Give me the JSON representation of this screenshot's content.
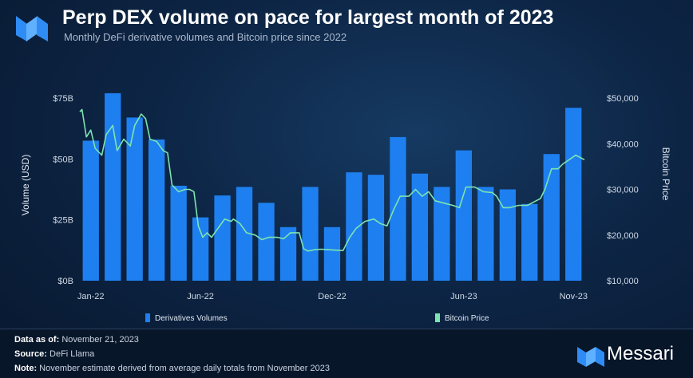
{
  "header": {
    "title": "Perp DEX volume on pace for largest month of 2023",
    "subtitle": "Monthly DeFi derivative volumes and Bitcoin price since 2022"
  },
  "colors": {
    "bars": "#1e80f0",
    "line": "#7ce4b0",
    "axis_text": "#cfd9e6",
    "background": "#0d2545"
  },
  "chart_data": {
    "type": "bar",
    "categories": [
      "Jan-22",
      "Feb-22",
      "Mar-22",
      "Apr-22",
      "May-22",
      "Jun-22",
      "Jul-22",
      "Aug-22",
      "Sep-22",
      "Oct-22",
      "Nov-22",
      "Dec-22",
      "Jan-23",
      "Feb-23",
      "Mar-23",
      "Apr-23",
      "May-23",
      "Jun-23",
      "Jul-23",
      "Aug-23",
      "Sep-23",
      "Oct-23",
      "Nov-23"
    ],
    "x_tick_labels": [
      "Jan-22",
      "Jun-22",
      "Dec-22",
      "Jun-23",
      "Nov-23"
    ],
    "series": [
      {
        "name": "Derivatives Volumes",
        "axis": "left",
        "values": [
          57.5,
          77,
          67,
          58,
          39,
          26,
          35,
          38.5,
          32,
          22,
          38.5,
          22,
          44.5,
          43.5,
          59,
          44,
          38.5,
          53.5,
          38.5,
          37.5,
          31.5,
          52,
          71
        ]
      },
      {
        "name": "Bitcoin Price",
        "axis": "right",
        "type": "line",
        "points": [
          [
            0,
            47000
          ],
          [
            0.1,
            47500
          ],
          [
            0.3,
            41500
          ],
          [
            0.5,
            43000
          ],
          [
            0.7,
            39000
          ],
          [
            1.0,
            37500
          ],
          [
            1.2,
            42000
          ],
          [
            1.5,
            44000
          ],
          [
            1.7,
            38500
          ],
          [
            2.0,
            41000
          ],
          [
            2.3,
            39500
          ],
          [
            2.5,
            44000
          ],
          [
            2.8,
            46500
          ],
          [
            3.0,
            45500
          ],
          [
            3.2,
            41000
          ],
          [
            3.5,
            40500
          ],
          [
            3.8,
            38500
          ],
          [
            4.0,
            38000
          ],
          [
            4.2,
            31000
          ],
          [
            4.5,
            29500
          ],
          [
            4.8,
            30000
          ],
          [
            5.0,
            30000
          ],
          [
            5.2,
            29500
          ],
          [
            5.4,
            22000
          ],
          [
            5.6,
            19500
          ],
          [
            5.8,
            20500
          ],
          [
            6.0,
            19500
          ],
          [
            6.3,
            21500
          ],
          [
            6.6,
            23500
          ],
          [
            6.9,
            23000
          ],
          [
            7.0,
            23500
          ],
          [
            7.3,
            22500
          ],
          [
            7.6,
            20500
          ],
          [
            8.0,
            20000
          ],
          [
            8.3,
            19000
          ],
          [
            8.6,
            19500
          ],
          [
            9.0,
            19500
          ],
          [
            9.3,
            19200
          ],
          [
            9.6,
            20500
          ],
          [
            10.0,
            20500
          ],
          [
            10.2,
            17000
          ],
          [
            10.4,
            16500
          ],
          [
            10.7,
            16800
          ],
          [
            11.0,
            16900
          ],
          [
            11.3,
            16800
          ],
          [
            11.6,
            16700
          ],
          [
            12.0,
            16600
          ],
          [
            12.3,
            19500
          ],
          [
            12.6,
            21500
          ],
          [
            13.0,
            23000
          ],
          [
            13.4,
            23500
          ],
          [
            13.7,
            22500
          ],
          [
            14.0,
            22000
          ],
          [
            14.3,
            25500
          ],
          [
            14.6,
            28500
          ],
          [
            15.0,
            28500
          ],
          [
            15.3,
            30000
          ],
          [
            15.6,
            28500
          ],
          [
            15.9,
            29500
          ],
          [
            16.2,
            27500
          ],
          [
            16.6,
            27000
          ],
          [
            17.0,
            26500
          ],
          [
            17.3,
            26000
          ],
          [
            17.6,
            30500
          ],
          [
            18.0,
            30500
          ],
          [
            18.4,
            29500
          ],
          [
            18.8,
            29300
          ],
          [
            19.0,
            28500
          ],
          [
            19.3,
            26000
          ],
          [
            19.6,
            26000
          ],
          [
            20.0,
            26500
          ],
          [
            20.4,
            26500
          ],
          [
            20.8,
            27500
          ],
          [
            21.0,
            28000
          ],
          [
            21.2,
            30000
          ],
          [
            21.5,
            34500
          ],
          [
            21.8,
            34500
          ],
          [
            22.0,
            35500
          ],
          [
            22.3,
            36500
          ],
          [
            22.6,
            37500
          ],
          [
            22.8,
            37000
          ],
          [
            23.0,
            36500
          ]
        ]
      }
    ],
    "ylabel_left": "Volume (USD)",
    "ylabel_right": "Bitcoin Price",
    "ylim_left": [
      0,
      75
    ],
    "ylim_right": [
      10000,
      50000
    ],
    "y_ticks_left": [
      0,
      25,
      50,
      75
    ],
    "y_tick_labels_left": [
      "$0B",
      "$25B",
      "$50B",
      "$75B"
    ],
    "y_ticks_right": [
      10000,
      20000,
      30000,
      40000,
      50000
    ],
    "y_tick_labels_right": [
      "$10,000",
      "$20,000",
      "$30,000",
      "$40,000",
      "$50,000"
    ],
    "legend_position": "bottom",
    "grid": false
  },
  "legend": {
    "bars_label": "Derivatives Volumes",
    "line_label": "Bitcoin Price"
  },
  "footer": {
    "data_as_of_label": "Data as of:",
    "data_as_of_value": "November 21, 2023",
    "source_label": "Source:",
    "source_value": "DeFi Llama",
    "note_label": "Note:",
    "note_value": "November estimate derived from average daily totals from November 2023",
    "brand": "Messari"
  }
}
